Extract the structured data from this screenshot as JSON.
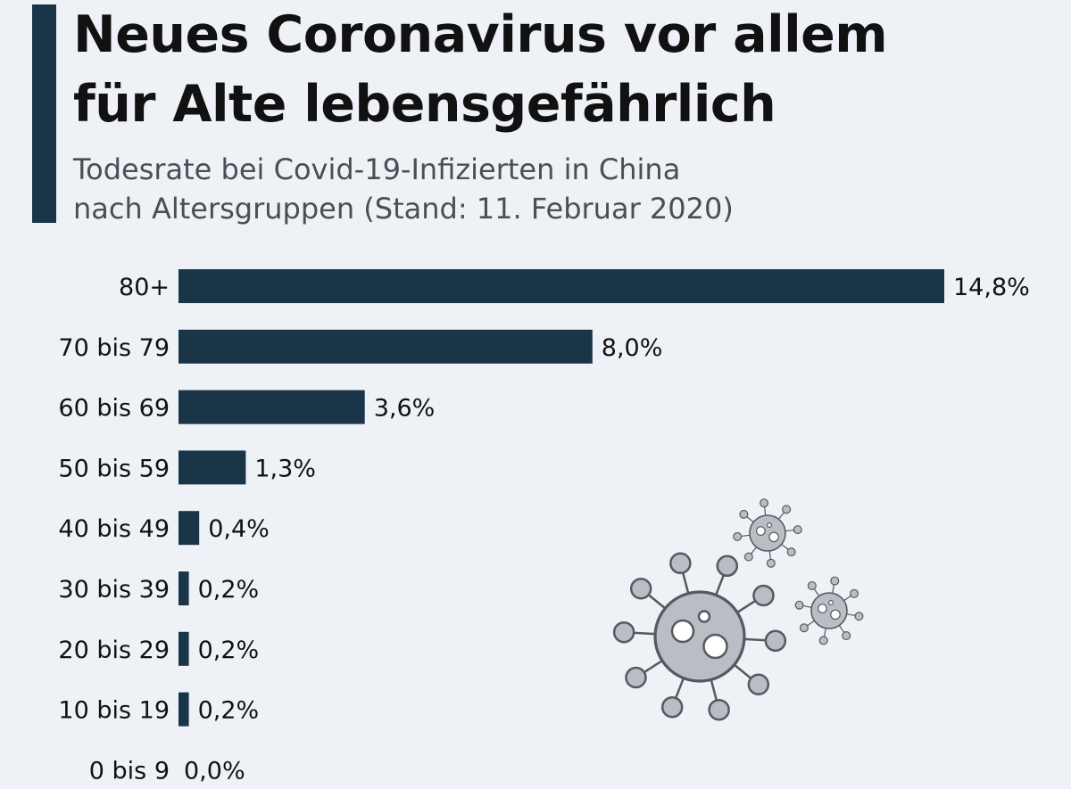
{
  "header": {
    "title_line1": "Neues Coronavirus vor allem",
    "title_line2": "für Alte lebensgefährlich",
    "subtitle_line1": "Todesrate bei Covid-19-Infizierten in China",
    "subtitle_line2": "nach Altersgruppen (Stand: 11. Februar 2020)"
  },
  "colors": {
    "bar": "#1a3448",
    "accent": "#1a3448",
    "background": "#eef2f7",
    "virus": "#b9bec4",
    "virus_stroke": "#555a60"
  },
  "chart_data": {
    "type": "bar",
    "orientation": "horizontal",
    "title": "Neues Coronavirus vor allem für Alte lebensgefährlich",
    "subtitle": "Todesrate bei Covid-19-Infizierten in China nach Altersgruppen (Stand: 11. Februar 2020)",
    "categories": [
      "80+",
      "70 bis 79",
      "60 bis 69",
      "50 bis 59",
      "40 bis 49",
      "30 bis 39",
      "20 bis 29",
      "10 bis 19",
      "0 bis 9"
    ],
    "values": [
      14.8,
      8.0,
      3.6,
      1.3,
      0.4,
      0.2,
      0.2,
      0.2,
      0.0
    ],
    "value_labels": [
      "14,8%",
      "8,0%",
      "3,6%",
      "1,3%",
      "0,4%",
      "0,2%",
      "0,2%",
      "0,2%",
      "0,0%"
    ],
    "xlim": [
      0,
      14.8
    ],
    "grid": false,
    "legend": "none"
  },
  "decoration": {
    "icon": "virus-icon"
  }
}
